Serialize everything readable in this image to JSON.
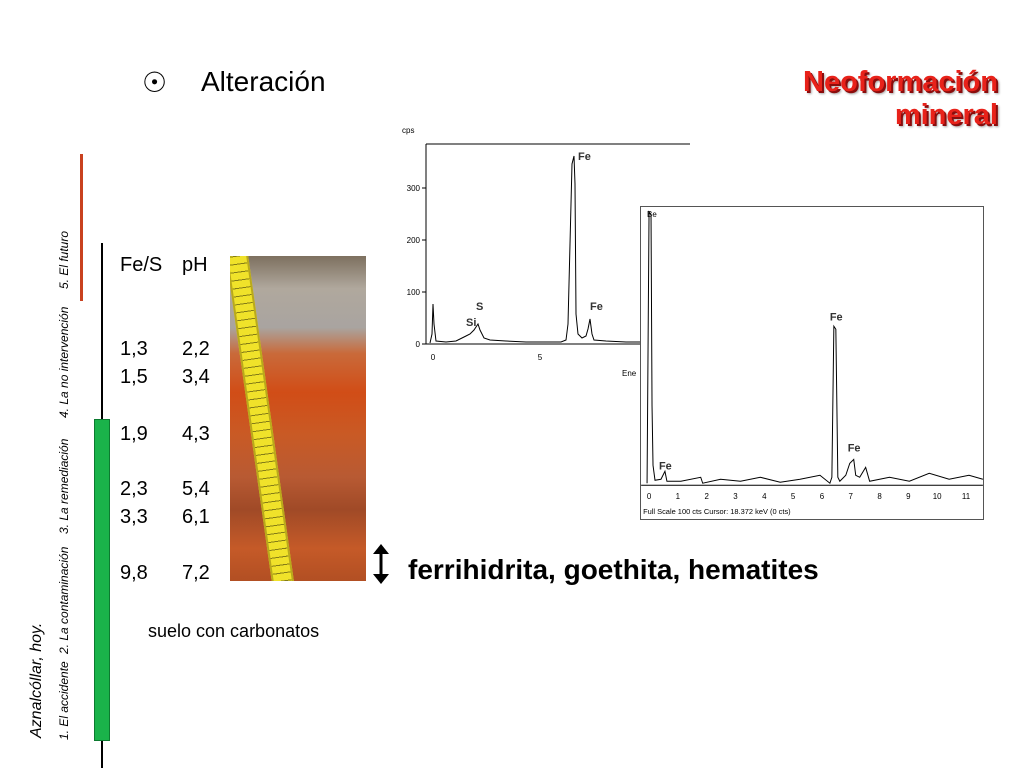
{
  "sidebar": {
    "caption": "Aznalcóllar, hoy.",
    "nav": [
      "1. El accidente",
      "2. La contaminación",
      "3. La remediación",
      "4. La no intervención",
      "5. El futuro"
    ]
  },
  "header": {
    "bullet": "☉",
    "title": "Alteración",
    "neo_line1": "Neoformación",
    "neo_line2": "mineral"
  },
  "table": {
    "col1_header": "Fe/S",
    "col2_header": "pH",
    "rows": [
      {
        "fes": "1,3",
        "ph": "2,2"
      },
      {
        "fes": "1,5",
        "ph": "3,4"
      },
      {
        "fes": "1,9",
        "ph": "4,3"
      },
      {
        "fes": "2,3",
        "ph": "5,4"
      },
      {
        "fes": "3,3",
        "ph": "6,1"
      },
      {
        "fes": "9,8",
        "ph": "7,2"
      }
    ],
    "footnote": "suelo con carbonatos"
  },
  "minerals": "ferrihidrita, goethita, hematites",
  "spectrum1": {
    "y_unit": "cps",
    "x_label": "Ene",
    "y_ticks": [
      "300",
      "200",
      "100",
      "0"
    ],
    "x_ticks": [
      "0",
      "5"
    ],
    "peaks": [
      "Fe",
      "S",
      "Si",
      "Fe"
    ]
  },
  "spectrum2": {
    "top_label": "Be",
    "x_ticks": [
      "0",
      "1",
      "2",
      "3",
      "4",
      "5",
      "6",
      "7",
      "8",
      "9",
      "10",
      "11"
    ],
    "peaks": [
      "Fe",
      "Fe",
      "Fe"
    ],
    "footer": "Full Scale 100 cts  Cursor: 18.372 keV (0 cts)"
  },
  "colors": {
    "accent_red": "#e8221a",
    "timeline_green": "#1ab34a",
    "timeline_red": "#c9411f"
  }
}
